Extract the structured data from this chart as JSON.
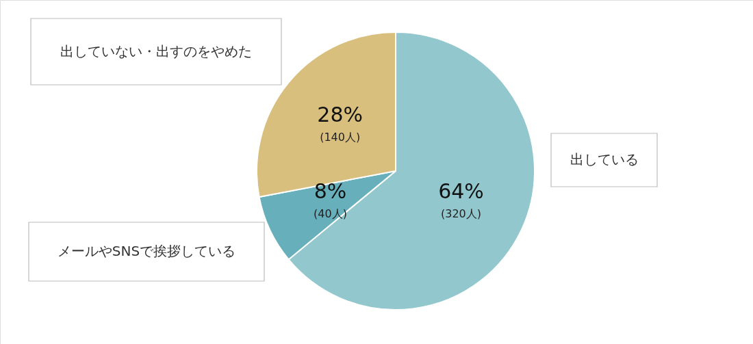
{
  "chart_data": {
    "type": "pie",
    "categories": [
      "出している",
      "メールやSNSで挨拶している",
      "出していない・出すのをやめた"
    ],
    "values": [
      64,
      8,
      28
    ],
    "colors": [
      "#91c7cd",
      "#67b0bb",
      "#d8bf7d"
    ],
    "value_labels": [
      "64%\n(320人)",
      "8%\n(40人)",
      "28%\n(140人)"
    ]
  }
}
